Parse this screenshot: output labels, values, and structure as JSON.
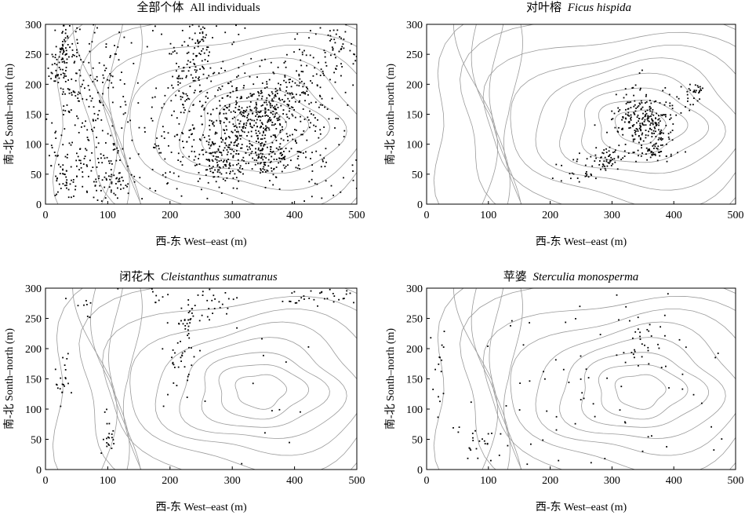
{
  "figure": {
    "note": ""
  },
  "chart_data": [
    {
      "type": "scatter",
      "title_cn": "全部个体",
      "title_en": "All individuals",
      "title_en_italic": false,
      "xlabel": "西-东 West–east (m)",
      "ylabel": "南-北 Sonth–north (m)",
      "xlim": [
        0,
        500
      ],
      "ylim": [
        0,
        300
      ],
      "xticks": [
        0,
        100,
        200,
        300,
        400,
        500
      ],
      "yticks": [
        0,
        50,
        100,
        150,
        200,
        250,
        300
      ],
      "density": "very high",
      "clusters": [
        {
          "x": 30,
          "y": 240,
          "sx": 12,
          "sy": 40,
          "n": 120
        },
        {
          "x": 80,
          "y": 160,
          "sx": 25,
          "sy": 60,
          "n": 120
        },
        {
          "x": 40,
          "y": 60,
          "sx": 20,
          "sy": 30,
          "n": 80
        },
        {
          "x": 110,
          "y": 45,
          "sx": 15,
          "sy": 20,
          "n": 60
        },
        {
          "x": 240,
          "y": 230,
          "sx": 18,
          "sy": 50,
          "n": 120
        },
        {
          "x": 280,
          "y": 80,
          "sx": 25,
          "sy": 25,
          "n": 150
        },
        {
          "x": 300,
          "y": 140,
          "sx": 20,
          "sy": 40,
          "n": 120
        },
        {
          "x": 350,
          "y": 140,
          "sx": 25,
          "sy": 30,
          "n": 260
        },
        {
          "x": 360,
          "y": 80,
          "sx": 20,
          "sy": 20,
          "n": 100
        },
        {
          "x": 400,
          "y": 190,
          "sx": 25,
          "sy": 30,
          "n": 90
        },
        {
          "x": 440,
          "y": 120,
          "sx": 25,
          "sy": 60,
          "n": 80
        },
        {
          "x": 470,
          "y": 270,
          "sx": 20,
          "sy": 25,
          "n": 60
        },
        {
          "x": 200,
          "y": 120,
          "sx": 30,
          "sy": 60,
          "n": 70
        },
        {
          "x": 250,
          "y": 150,
          "sx": 200,
          "sy": 120,
          "n": 280
        }
      ]
    },
    {
      "type": "scatter",
      "title_cn": "对叶榕",
      "title_en": "Ficus hispida",
      "title_en_italic": true,
      "xlabel": "西-东 West–east (m)",
      "ylabel": "南-北 Sonth–north (m)",
      "xlim": [
        0,
        500
      ],
      "ylim": [
        0,
        300
      ],
      "xticks": [
        0,
        100,
        200,
        300,
        400,
        500
      ],
      "yticks": [
        0,
        50,
        100,
        150,
        200,
        250,
        300
      ],
      "clusters": [
        {
          "x": 355,
          "y": 140,
          "sx": 25,
          "sy": 20,
          "n": 200
        },
        {
          "x": 365,
          "y": 90,
          "sx": 20,
          "sy": 12,
          "n": 60
        },
        {
          "x": 290,
          "y": 75,
          "sx": 15,
          "sy": 10,
          "n": 50
        },
        {
          "x": 250,
          "y": 55,
          "sx": 15,
          "sy": 12,
          "n": 25
        },
        {
          "x": 430,
          "y": 185,
          "sx": 12,
          "sy": 10,
          "n": 30
        },
        {
          "x": 335,
          "y": 160,
          "sx": 15,
          "sy": 25,
          "n": 40
        }
      ]
    },
    {
      "type": "scatter",
      "title_cn": "闭花木",
      "title_en": "Cleistanthus sumatranus",
      "title_en_italic": true,
      "xlabel": "西-东 West–east (m)",
      "ylabel": "南-北 Sonth–north (m)",
      "xlim": [
        0,
        500
      ],
      "ylim": [
        0,
        300
      ],
      "xticks": [
        0,
        100,
        200,
        300,
        400,
        500
      ],
      "yticks": [
        0,
        50,
        100,
        150,
        200,
        250,
        300
      ],
      "clusters": [
        {
          "x": 30,
          "y": 150,
          "sx": 10,
          "sy": 25,
          "n": 20
        },
        {
          "x": 230,
          "y": 250,
          "sx": 8,
          "sy": 15,
          "n": 30
        },
        {
          "x": 215,
          "y": 190,
          "sx": 15,
          "sy": 30,
          "n": 30
        },
        {
          "x": 275,
          "y": 270,
          "sx": 20,
          "sy": 20,
          "n": 25
        },
        {
          "x": 440,
          "y": 285,
          "sx": 25,
          "sy": 12,
          "n": 35
        },
        {
          "x": 100,
          "y": 60,
          "sx": 10,
          "sy": 15,
          "n": 20
        },
        {
          "x": 60,
          "y": 270,
          "sx": 8,
          "sy": 10,
          "n": 6
        },
        {
          "x": 185,
          "y": 285,
          "sx": 10,
          "sy": 8,
          "n": 8
        },
        {
          "x": 300,
          "y": 150,
          "sx": 150,
          "sy": 100,
          "n": 25
        }
      ]
    },
    {
      "type": "scatter",
      "title_cn": "苹婆",
      "title_en": "Sterculia monosperma",
      "title_en_italic": true,
      "xlabel": "西-东 West–east (m)",
      "ylabel": "南-北 Sonth–north (m)",
      "xlim": [
        0,
        500
      ],
      "ylim": [
        0,
        300
      ],
      "xticks": [
        0,
        100,
        200,
        300,
        400,
        500
      ],
      "yticks": [
        0,
        50,
        100,
        150,
        200,
        250,
        300
      ],
      "clusters": [
        {
          "x": 20,
          "y": 160,
          "sx": 8,
          "sy": 40,
          "n": 15
        },
        {
          "x": 80,
          "y": 40,
          "sx": 20,
          "sy": 15,
          "n": 20
        },
        {
          "x": 350,
          "y": 200,
          "sx": 25,
          "sy": 25,
          "n": 30
        },
        {
          "x": 280,
          "y": 120,
          "sx": 170,
          "sy": 100,
          "n": 110
        }
      ]
    }
  ],
  "colors": {
    "points": "#000000",
    "contours": "#9a9a9a",
    "frame": "#000000"
  }
}
